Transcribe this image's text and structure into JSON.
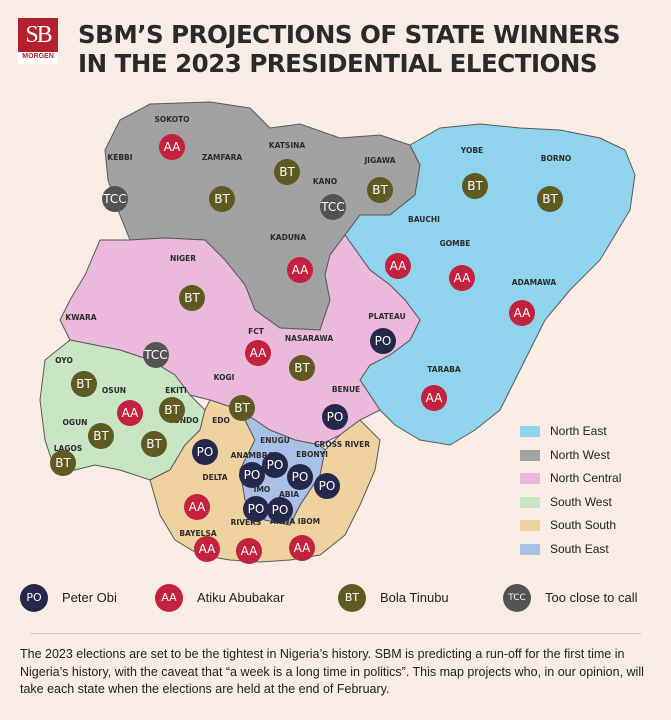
{
  "header": {
    "logo_text": "SB",
    "logo_subtext": "MORGEN",
    "title": "SBM’S PROJECTIONS OF STATE WINNERS IN THE 2023 PRESIDENTIAL ELECTIONS"
  },
  "colors": {
    "north_east": "#8fd3ec",
    "north_west": "#a2a2a2",
    "north_central": "#eab9dc",
    "south_west": "#c8e6c4",
    "south_south": "#f0d2a0",
    "south_east": "#a9c0e6",
    "peter_obi": "#25284a",
    "atiku": "#c2223d",
    "tinubu": "#5e5a22",
    "tcc": "#535353",
    "background": "#f8ece4"
  },
  "regions_legend": [
    {
      "label": "North East",
      "color": "#8fd3ec"
    },
    {
      "label": "North West",
      "color": "#a2a2a2"
    },
    {
      "label": "North Central",
      "color": "#eab9dc"
    },
    {
      "label": "South West",
      "color": "#c8e6c4"
    },
    {
      "label": "South South",
      "color": "#f0d2a0"
    },
    {
      "label": "South East",
      "color": "#a9c0e6"
    }
  ],
  "key": [
    {
      "code": "PO",
      "label": "Peter Obi",
      "color": "#25284a"
    },
    {
      "code": "AA",
      "label": "Atiku Abubakar",
      "color": "#c2223d"
    },
    {
      "code": "BT",
      "label": "Bola Tinubu",
      "color": "#5e5a22"
    },
    {
      "code": "TCC",
      "label": "Too close to call",
      "color": "#535353"
    }
  ],
  "states": [
    {
      "name": "SOKOTO",
      "winner": "AA"
    },
    {
      "name": "KEBBI",
      "winner": "TCC"
    },
    {
      "name": "ZAMFARA",
      "winner": "BT"
    },
    {
      "name": "KATSINA",
      "winner": "BT"
    },
    {
      "name": "JIGAWA",
      "winner": "BT"
    },
    {
      "name": "KANO",
      "winner": "TCC"
    },
    {
      "name": "KADUNA",
      "winner": "AA"
    },
    {
      "name": "YOBE",
      "winner": "BT"
    },
    {
      "name": "BORNO",
      "winner": "BT"
    },
    {
      "name": "BAUCHI",
      "winner": "AA"
    },
    {
      "name": "GOMBE",
      "winner": "AA"
    },
    {
      "name": "ADAMAWA",
      "winner": "AA"
    },
    {
      "name": "TARABA",
      "winner": "AA"
    },
    {
      "name": "NIGER",
      "winner": "BT"
    },
    {
      "name": "KWARA",
      "winner": "TCC"
    },
    {
      "name": "FCT",
      "winner": "AA"
    },
    {
      "name": "NASARAWA",
      "winner": "BT"
    },
    {
      "name": "PLATEAU",
      "winner": "PO"
    },
    {
      "name": "KOGI",
      "winner": "BT"
    },
    {
      "name": "BENUE",
      "winner": "PO"
    },
    {
      "name": "OYO",
      "winner": "BT"
    },
    {
      "name": "OSUN",
      "winner": "AA"
    },
    {
      "name": "EKITI",
      "winner": "BT"
    },
    {
      "name": "ONDO",
      "winner": "BT"
    },
    {
      "name": "OGUN",
      "winner": "BT"
    },
    {
      "name": "LAGOS",
      "winner": "BT"
    },
    {
      "name": "EDO",
      "winner": "PO"
    },
    {
      "name": "DELTA",
      "winner": "AA"
    },
    {
      "name": "BAYELSA",
      "winner": "AA"
    },
    {
      "name": "RIVERS",
      "winner": "AA"
    },
    {
      "name": "AKWA IBOM",
      "winner": "AA"
    },
    {
      "name": "CROSS RIVER",
      "winner": "PO"
    },
    {
      "name": "ENUGU",
      "winner": "PO"
    },
    {
      "name": "EBONYI",
      "winner": "PO"
    },
    {
      "name": "ANAMBRA",
      "winner": "PO"
    },
    {
      "name": "IMO",
      "winner": "PO"
    },
    {
      "name": "ABIA",
      "winner": "PO"
    }
  ],
  "paragraph": "The 2023 elections are set to be the tightest in Nigeria’s history. SBM is predicting a run-off for the first time in Nigeria’s history, with the caveat that “a week is a long time in politics”. This map projects who, in our opinion, will take each state when the elections are held at the end of February."
}
